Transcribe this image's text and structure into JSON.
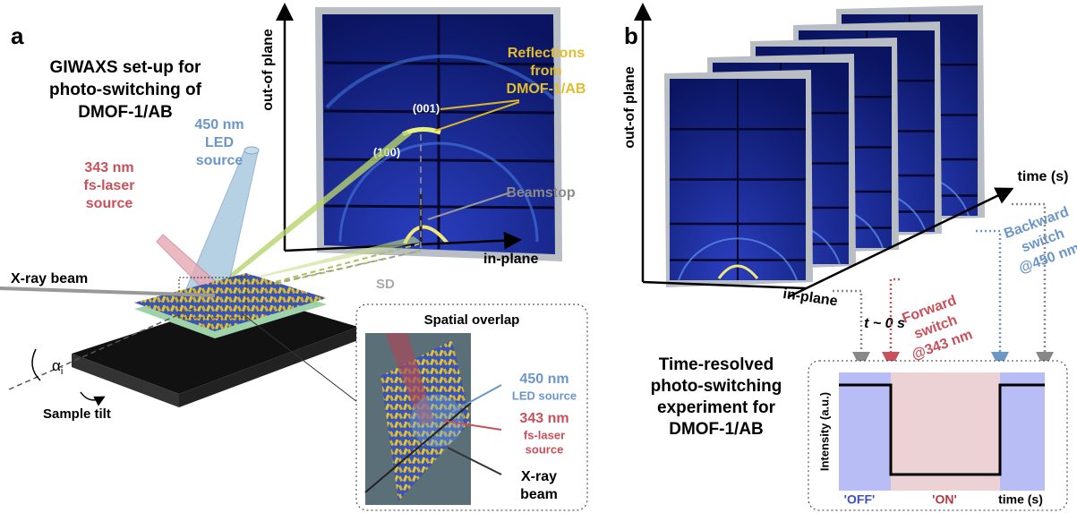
{
  "panel_a": {
    "letter": "a",
    "title_lines": [
      "GIWAXS set-up for",
      "photo-switching of",
      "DMOF-1/AB"
    ],
    "led_lines": [
      "450 nm",
      "LED",
      "source"
    ],
    "laser_lines": [
      "343 nm",
      "fs-laser",
      "source"
    ],
    "xray_beam": "X-ray beam",
    "alpha": "α",
    "alpha_sub": "i",
    "sample_tilt": "Sample tilt",
    "axis_y": "out-of plane",
    "axis_x": "in-plane",
    "peak_001": "(001)",
    "peak_100": "(100)",
    "reflections_lines": [
      "Reflections",
      "from",
      "DMOF-1/AB"
    ],
    "beamstop": "Beamstop",
    "sd": "SD",
    "inset": {
      "title": "Spatial overlap",
      "led_lines": [
        "450 nm",
        "LED source"
      ],
      "laser_lines": [
        "343 nm",
        "fs-laser",
        "source"
      ],
      "xray_lines": [
        "X-ray",
        "beam"
      ]
    }
  },
  "panel_b": {
    "letter": "b",
    "axis_y": "out-of plane",
    "axis_x": "in-plane",
    "axis_t": "time (s)",
    "t0": "t ~ 0 s",
    "forward_lines": [
      "Forward",
      "switch",
      "@343 nm"
    ],
    "backward_lines": [
      "Backward",
      "switch",
      "@450 nm"
    ],
    "caption_lines": [
      "Time-resolved",
      "photo-switching",
      "experiment for",
      "DMOF-1/AB"
    ],
    "plot": {
      "y_label": "Intensity (a.u.)",
      "off": "'OFF'",
      "on": "'ON'",
      "x_label": "time (s)"
    }
  }
}
